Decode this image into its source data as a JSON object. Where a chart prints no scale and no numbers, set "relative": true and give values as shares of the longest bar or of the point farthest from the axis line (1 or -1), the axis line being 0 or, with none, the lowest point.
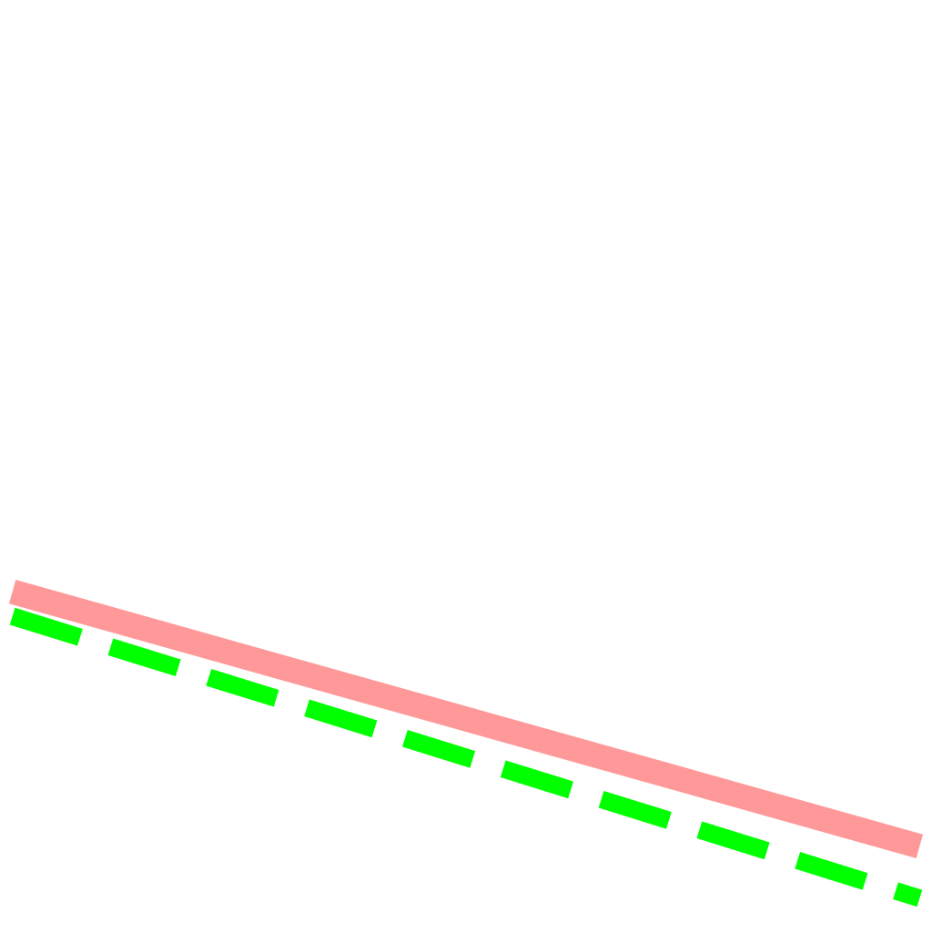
{
  "chart_data": {
    "type": "line",
    "relative": true,
    "categories": [
      null,
      null
    ],
    "series": [
      {
        "color": "#ff9999",
        "values": [
          1,
          0.17
        ],
        "line_style": "solid"
      },
      {
        "color": "#00ff00",
        "values": [
          0.92,
          0
        ],
        "line_style": "dashed"
      }
    ]
  }
}
